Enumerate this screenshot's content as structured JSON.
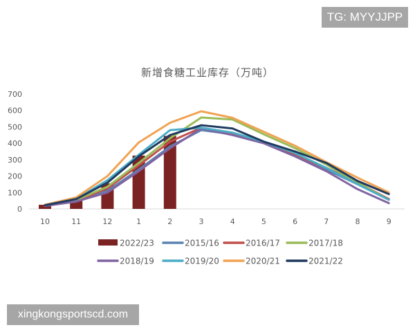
{
  "watermarks": {
    "top": "TG: MYYJJPP",
    "bottom": "xingkongsportscd.com"
  },
  "chart_data": {
    "type": "bar+line",
    "title": "新增食糖工业库存（万吨）",
    "xlabel": "",
    "ylabel": "",
    "ylim": [
      0,
      700
    ],
    "yticks": [
      0,
      100,
      200,
      300,
      400,
      500,
      600,
      700
    ],
    "categories": [
      "10",
      "11",
      "12",
      "1",
      "2",
      "3",
      "4",
      "5",
      "6",
      "7",
      "8",
      "9"
    ],
    "grid": false,
    "legend_position": "bottom",
    "series": [
      {
        "name": "2022/23",
        "type": "bar",
        "color": "#7b2323",
        "values": [
          25,
          55,
          155,
          325,
          445,
          null,
          null,
          null,
          null,
          null,
          null,
          null
        ]
      },
      {
        "name": "2015/16",
        "type": "line",
        "color": "#5b84b1",
        "values": [
          20,
          45,
          110,
          240,
          380,
          480,
          455,
          405,
          330,
          240,
          150,
          60
        ]
      },
      {
        "name": "2016/17",
        "type": "line",
        "color": "#c0504d",
        "values": [
          20,
          50,
          125,
          265,
          410,
          495,
          460,
          410,
          330,
          250,
          160,
          60
        ]
      },
      {
        "name": "2017/18",
        "type": "line",
        "color": "#9bbb59",
        "values": [
          20,
          55,
          135,
          280,
          430,
          557,
          545,
          455,
          370,
          270,
          160,
          55
        ]
      },
      {
        "name": "2018/19",
        "type": "line",
        "color": "#8064a2",
        "values": [
          18,
          45,
          100,
          230,
          370,
          490,
          450,
          400,
          320,
          230,
          120,
          35
        ]
      },
      {
        "name": "2019/20",
        "type": "line",
        "color": "#4bacc6",
        "values": [
          22,
          60,
          175,
          330,
          480,
          495,
          465,
          410,
          340,
          250,
          150,
          55
        ]
      },
      {
        "name": "2020/21",
        "type": "line",
        "color": "#f0a353",
        "values": [
          25,
          70,
          200,
          405,
          525,
          595,
          555,
          470,
          385,
          285,
          190,
          100
        ]
      },
      {
        "name": "2021/22",
        "type": "line",
        "color": "#1f3a5f",
        "values": [
          22,
          60,
          160,
          320,
          450,
          510,
          490,
          410,
          350,
          280,
          170,
          90
        ]
      }
    ]
  }
}
